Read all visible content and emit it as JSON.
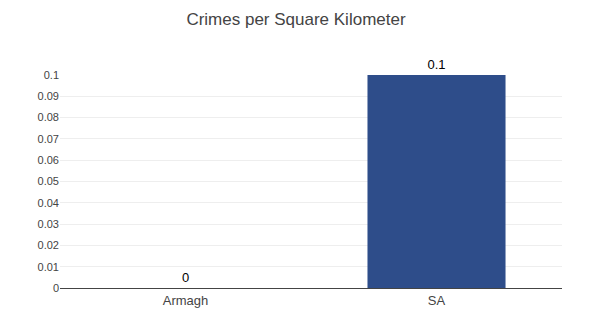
{
  "chart_data": {
    "type": "bar",
    "title": "Crimes per Square Kilometer",
    "categories": [
      "Armagh",
      "SA"
    ],
    "values": [
      0.0,
      0.1
    ],
    "color": "#2e4d8a",
    "ylim": [
      0,
      0.1
    ],
    "yticks": [
      0,
      0.01,
      0.02,
      0.03,
      0.04,
      0.05,
      0.06,
      0.07,
      0.08,
      0.09,
      0.1
    ],
    "grid": true,
    "data_labels": true
  }
}
